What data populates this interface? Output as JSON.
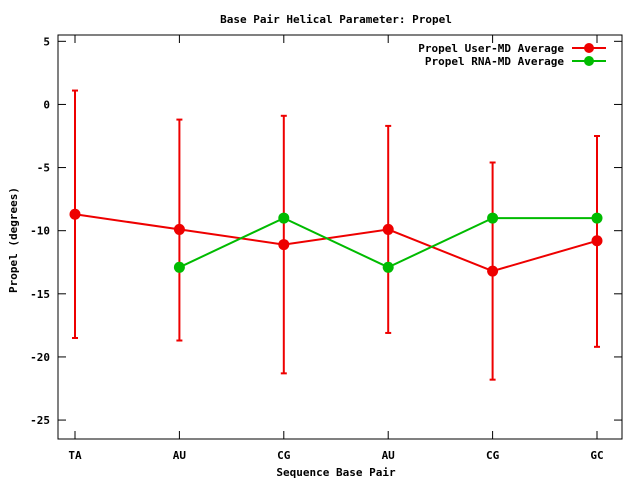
{
  "chart_data": {
    "type": "line",
    "title": "Base Pair Helical Parameter: Propel",
    "xlabel": "Sequence Base Pair",
    "ylabel": "Propel (degrees)",
    "categories": [
      "TA",
      "AU",
      "CG",
      "AU",
      "CG",
      "GC"
    ],
    "ylim": [
      -26.5,
      5.5
    ],
    "yticks": [
      5,
      0,
      -5,
      -10,
      -15,
      -20,
      -25
    ],
    "ytick_labels": [
      "5",
      "0",
      "-5",
      "-10",
      "-15",
      "-20",
      "-25"
    ],
    "grid": false,
    "legend_position": "top-right",
    "series": [
      {
        "name": "Propel User-MD Average",
        "color": "#ee0000",
        "values": [
          -8.7,
          -9.9,
          -11.1,
          -9.9,
          -13.2,
          -10.8
        ],
        "error_low": [
          -18.5,
          -18.7,
          -21.3,
          -18.1,
          -21.8,
          -19.2
        ],
        "error_high": [
          1.1,
          -1.2,
          -0.9,
          -1.7,
          -4.6,
          -2.5
        ]
      },
      {
        "name": "Propel RNA-MD Average",
        "color": "#00bb00",
        "values": [
          null,
          -12.9,
          -9.0,
          -12.9,
          -9.0,
          -9.0
        ]
      }
    ]
  }
}
